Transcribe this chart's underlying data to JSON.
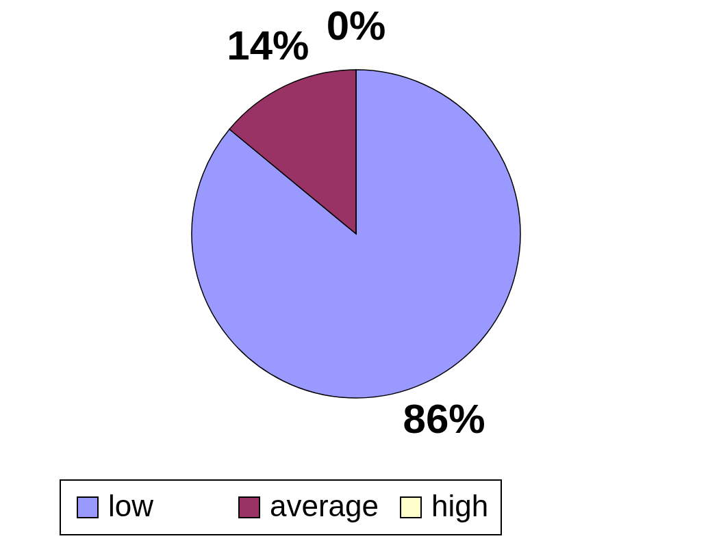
{
  "chart_data": {
    "type": "pie",
    "categories": [
      "low",
      "average",
      "high"
    ],
    "values": [
      86,
      14,
      0
    ],
    "colors": [
      "#9999ff",
      "#993366",
      "#ffffcc"
    ],
    "value_labels": [
      "86%",
      "14%",
      "0%"
    ],
    "legend": "bottom"
  }
}
